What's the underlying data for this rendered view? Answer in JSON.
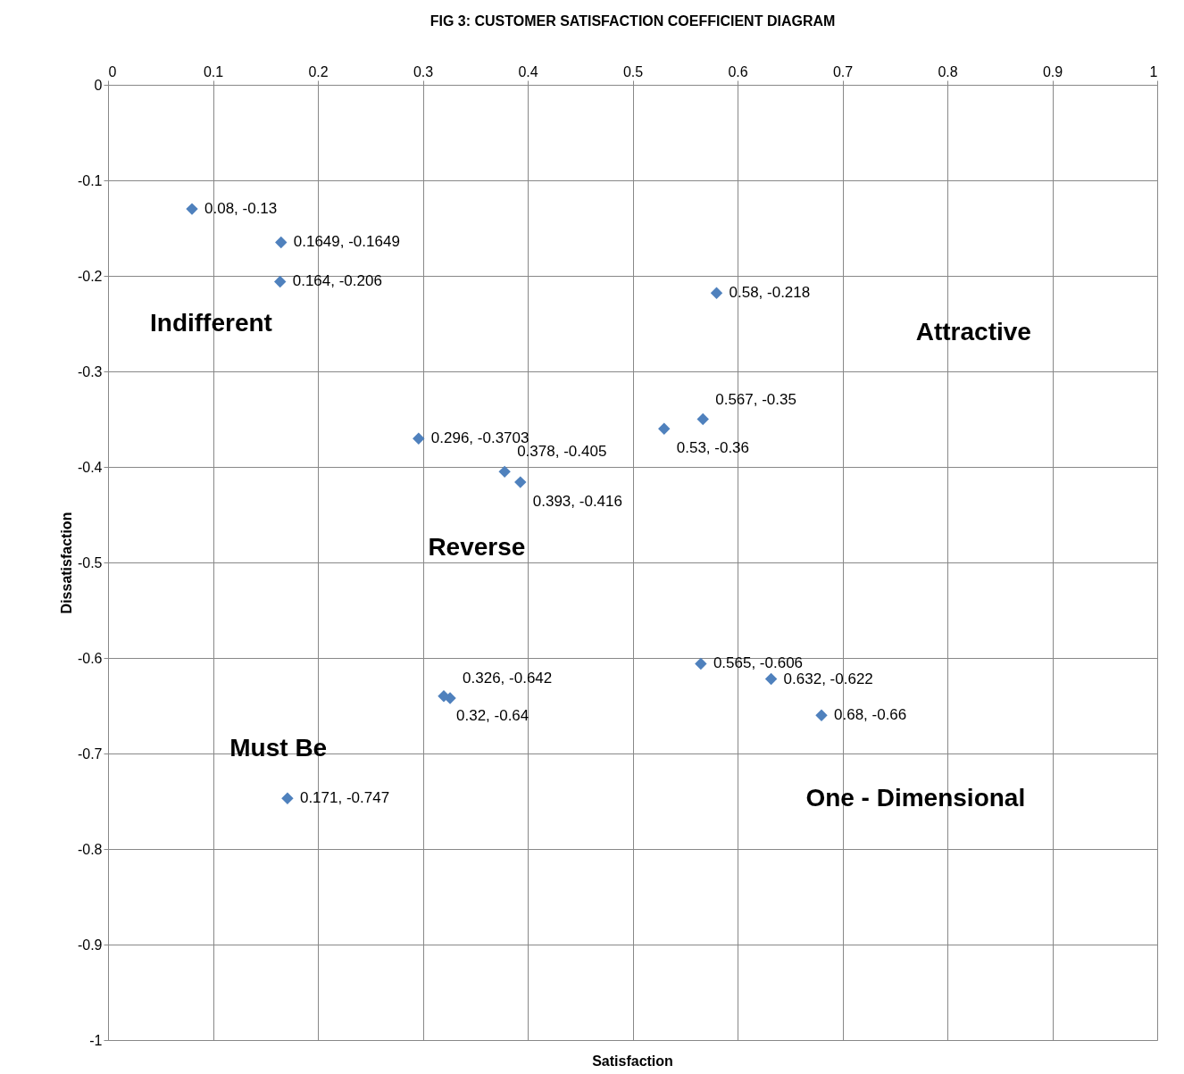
{
  "chart_data": {
    "type": "scatter",
    "title": "FIG 3: CUSTOMER SATISFACTION COEFFICIENT DIAGRAM",
    "xlabel": "Satisfaction",
    "ylabel": "Dissatisfaction",
    "x": [
      0.08,
      0.1649,
      0.164,
      0.58,
      0.567,
      0.53,
      0.296,
      0.378,
      0.393,
      0.565,
      0.632,
      0.68,
      0.326,
      0.32,
      0.171
    ],
    "series": [
      {
        "color": "#4f81bd",
        "values": [
          -0.13,
          -0.1649,
          -0.206,
          -0.218,
          -0.35,
          -0.36,
          -0.3703,
          -0.405,
          -0.416,
          -0.606,
          -0.622,
          -0.66,
          -0.642,
          -0.64,
          -0.747
        ],
        "value_labels": [
          "0.08, -0.13",
          "0.1649, -0.1649",
          "0.164, -0.206",
          "0.58, -0.218",
          "0.567, -0.35",
          "0.53, -0.36",
          "0.296, -0.3703",
          "0.378, -0.405",
          "0.393, -0.416",
          "0.565, -0.606",
          "0.632, -0.622",
          "0.68, -0.66",
          "0.326, -0.642",
          "0.32, -0.64",
          "0.171, -0.747"
        ]
      }
    ],
    "marker": "diamond",
    "grid": true,
    "xlim": [
      0,
      1
    ],
    "xticks": [
      0,
      0.1,
      0.2,
      0.3,
      0.4,
      0.5,
      0.6,
      0.7,
      0.8,
      0.9,
      1
    ],
    "ylim": [
      -1,
      0
    ],
    "yticks": [
      -1,
      -0.9,
      -0.8,
      -0.7,
      -0.6,
      -0.5,
      -0.4,
      -0.3,
      -0.2,
      -0.1,
      0
    ],
    "annotations": [
      "Indifferent",
      "Attractive",
      "Reverse",
      "Must Be",
      "One - Dimensional"
    ]
  }
}
